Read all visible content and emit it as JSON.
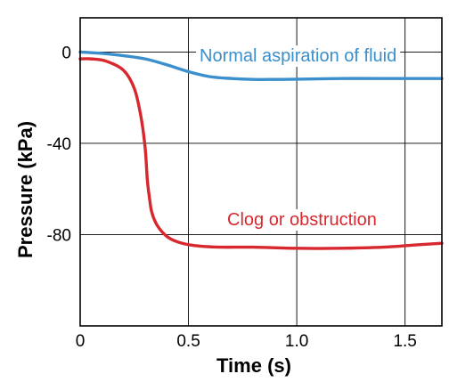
{
  "chart_data": {
    "type": "line",
    "xlabel": "Time (s)",
    "ylabel": "Pressure (kPa)",
    "xlim": [
      0,
      1.67
    ],
    "ylim": [
      -120,
      15
    ],
    "x_ticks": [
      0,
      0.5,
      1.0,
      1.5
    ],
    "x_tick_labels": [
      "0",
      "0.5",
      "1.0",
      "1.5"
    ],
    "y_ticks": [
      0,
      -40,
      -80
    ],
    "y_tick_labels": [
      "0",
      "-40",
      "-80"
    ],
    "grid": true,
    "series": [
      {
        "name": "Normal aspiration of fluid",
        "color": "#3a8fcc",
        "x": [
          0,
          0.1,
          0.2,
          0.3,
          0.4,
          0.5,
          0.6,
          0.7,
          0.8,
          0.9,
          1.0,
          1.2,
          1.4,
          1.67
        ],
        "y": [
          0,
          -0.6,
          -1.6,
          -3.0,
          -5.6,
          -8.6,
          -10.8,
          -11.6,
          -12.0,
          -12.0,
          -11.9,
          -11.6,
          -11.6,
          -11.6
        ]
      },
      {
        "name": "Clog or obstruction",
        "color": "#d7282f",
        "x": [
          0,
          0.05,
          0.12,
          0.2,
          0.25,
          0.28,
          0.3,
          0.31,
          0.32,
          0.33,
          0.35,
          0.38,
          0.42,
          0.48,
          0.55,
          0.65,
          0.8,
          1.0,
          1.2,
          1.4,
          1.55,
          1.67
        ],
        "y": [
          -3,
          -3,
          -4,
          -8,
          -16,
          -28,
          -42,
          -56,
          -64,
          -70,
          -75,
          -79,
          -82,
          -84,
          -85,
          -85.5,
          -85.5,
          -86,
          -86,
          -85.5,
          -84.5,
          -83.8
        ]
      }
    ],
    "annotations": [
      {
        "text": "Normal aspiration of fluid",
        "series": 0
      },
      {
        "text": "Clog or obstruction",
        "series": 1
      }
    ]
  }
}
